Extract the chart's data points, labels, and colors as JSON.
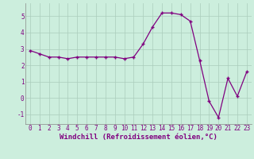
{
  "x": [
    0,
    1,
    2,
    3,
    4,
    5,
    6,
    7,
    8,
    9,
    10,
    11,
    12,
    13,
    14,
    15,
    16,
    17,
    18,
    19,
    20,
    21,
    22,
    23
  ],
  "y": [
    2.9,
    2.7,
    2.5,
    2.5,
    2.4,
    2.5,
    2.5,
    2.5,
    2.5,
    2.5,
    2.4,
    2.5,
    3.3,
    4.35,
    5.2,
    5.2,
    5.1,
    4.7,
    2.3,
    -0.2,
    -1.2,
    1.2,
    0.1,
    1.6
  ],
  "line_color": "#800080",
  "marker": "+",
  "marker_size": 3,
  "bg_color": "#cceedd",
  "grid_color": "#aaccbb",
  "xlabel": "Windchill (Refroidissement éolien,°C)",
  "xlabel_fontsize": 6.5,
  "tick_fontsize": 5.5,
  "tick_color": "#800080",
  "label_color": "#800080",
  "ylabel_ticks": [
    -1,
    0,
    1,
    2,
    3,
    4,
    5
  ],
  "xlim": [
    -0.5,
    23.5
  ],
  "ylim": [
    -1.6,
    5.8
  ]
}
